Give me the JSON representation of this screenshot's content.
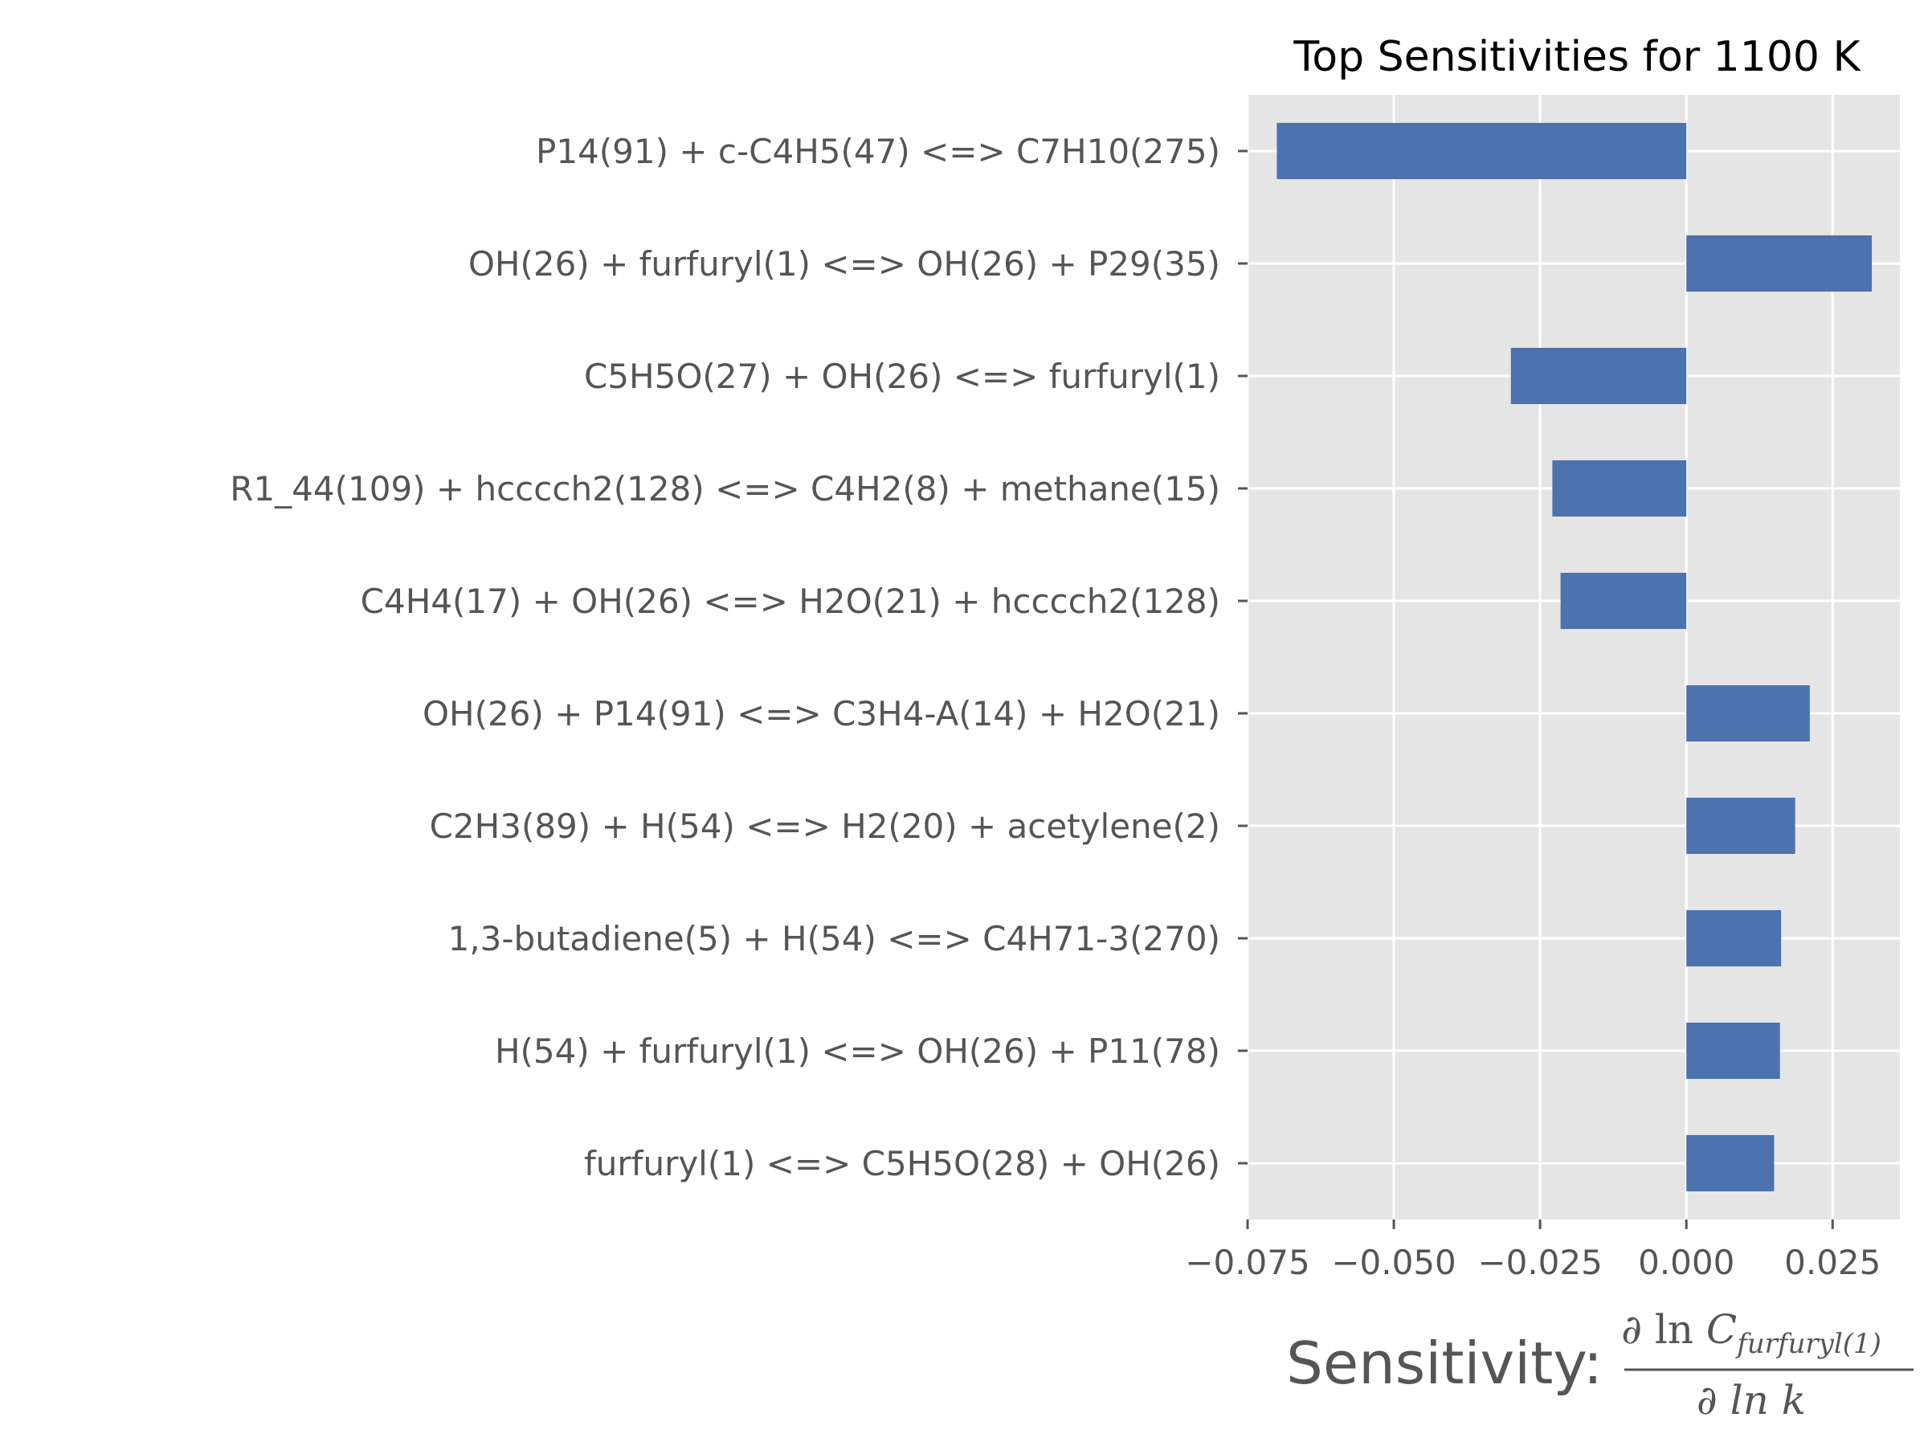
{
  "chart_data": {
    "type": "bar",
    "orientation": "horizontal",
    "title": "Top Sensitivities for 1100 K",
    "xlabel": "Sensitivity:",
    "xlabel_fraction": {
      "numerator_prefix": "∂ ln ",
      "numerator_var": "C",
      "numerator_sub": "furfuryl(1)",
      "denominator": "∂ ln k"
    },
    "ylabel": "",
    "categories": [
      "P14(91) + c-C4H5(47) <=> C7H10(275)",
      "OH(26) + furfuryl(1) <=> OH(26) + P29(35)",
      "C5H5O(27) + OH(26) <=> furfuryl(1)",
      "R1_44(109) + hcccch2(128) <=> C4H2(8) + methane(15)",
      "C4H4(17) + OH(26) <=> H2O(21) + hcccch2(128)",
      "OH(26) + P14(91) <=> C3H4-A(14) + H2O(21)",
      "C2H3(89) + H(54) <=> H2(20) + acetylene(2)",
      "1,3-butadiene(5) + H(54) <=> C4H71-3(270)",
      "H(54) + furfuryl(1) <=> OH(26) + P11(78)",
      "furfuryl(1) <=> C5H5O(28) + OH(26)"
    ],
    "values": [
      -0.07,
      0.0317,
      -0.03,
      -0.0229,
      -0.0215,
      0.0211,
      0.0186,
      0.0162,
      0.016,
      0.015
    ],
    "xlim": [
      -0.075,
      0.0365
    ],
    "xticks": [
      -0.075,
      -0.05,
      -0.025,
      0.0,
      0.025
    ],
    "xtick_labels": [
      "−0.075",
      "−0.050",
      "−0.025",
      "0.000",
      "0.025"
    ],
    "grid": true,
    "bar_color": "#4c72b0",
    "axes_bg": "#e5e5e5",
    "grid_color": "#ffffff"
  }
}
